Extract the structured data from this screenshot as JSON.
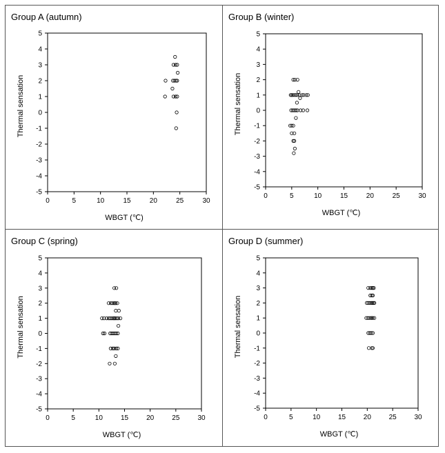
{
  "chart_data": [
    {
      "type": "scatter",
      "title": "Group A (autumn)",
      "xlabel": "WBGT (℃)",
      "ylabel": "Thermal sensation",
      "xlim": [
        0,
        30
      ],
      "ylim": [
        -5,
        5
      ],
      "xticks": [
        "0",
        "5",
        "10",
        "15",
        "20",
        "25",
        "30"
      ],
      "yticks": [
        "5",
        "4",
        "3",
        "2",
        "1",
        "0",
        "-1",
        "-2",
        "-3",
        "-4",
        "-5"
      ],
      "grid": false,
      "points": [
        [
          24.1,
          3.5
        ],
        [
          23.8,
          3.0
        ],
        [
          24.2,
          3.0
        ],
        [
          24.5,
          3.0
        ],
        [
          24.6,
          2.5
        ],
        [
          22.3,
          2.0
        ],
        [
          23.7,
          2.0
        ],
        [
          24.0,
          2.0
        ],
        [
          24.3,
          2.0
        ],
        [
          24.5,
          2.0
        ],
        [
          23.6,
          1.5
        ],
        [
          22.2,
          1.0
        ],
        [
          23.8,
          1.0
        ],
        [
          24.2,
          1.0
        ],
        [
          24.5,
          1.0
        ],
        [
          24.4,
          0.0
        ],
        [
          24.3,
          -1.0
        ]
      ]
    },
    {
      "type": "scatter",
      "title": "Group B (winter)",
      "xlabel": "WBGT (℃)",
      "ylabel": "Thermal sensation",
      "xlim": [
        0,
        30
      ],
      "ylim": [
        -5,
        5
      ],
      "xticks": [
        "0",
        "5",
        "10",
        "15",
        "20",
        "25",
        "30"
      ],
      "yticks": [
        "5",
        "4",
        "3",
        "2",
        "1",
        "0",
        "-1",
        "-2",
        "-3",
        "-4",
        "-5"
      ],
      "grid": false,
      "points": [
        [
          5.3,
          2.0
        ],
        [
          5.6,
          2.0
        ],
        [
          6.1,
          2.0
        ],
        [
          6.3,
          1.2
        ],
        [
          4.8,
          1.0
        ],
        [
          5.0,
          1.0
        ],
        [
          5.2,
          1.0
        ],
        [
          5.5,
          1.0
        ],
        [
          5.8,
          1.0
        ],
        [
          6.1,
          1.0
        ],
        [
          6.5,
          1.0
        ],
        [
          7.0,
          1.0
        ],
        [
          7.3,
          1.0
        ],
        [
          7.8,
          1.0
        ],
        [
          8.1,
          1.0
        ],
        [
          6.6,
          0.8
        ],
        [
          6.0,
          0.5
        ],
        [
          4.9,
          0.0
        ],
        [
          5.2,
          0.0
        ],
        [
          5.5,
          0.0
        ],
        [
          5.8,
          0.0
        ],
        [
          6.1,
          0.0
        ],
        [
          6.7,
          0.0
        ],
        [
          7.2,
          0.0
        ],
        [
          8.0,
          0.0
        ],
        [
          5.8,
          -0.5
        ],
        [
          4.7,
          -1.0
        ],
        [
          5.0,
          -1.0
        ],
        [
          5.3,
          -1.0
        ],
        [
          5.0,
          -1.5
        ],
        [
          5.5,
          -1.5
        ],
        [
          5.3,
          -2.0
        ],
        [
          5.5,
          -2.0
        ],
        [
          5.6,
          -2.5
        ],
        [
          5.4,
          -2.8
        ]
      ]
    },
    {
      "type": "scatter",
      "title": "Group C (spring)",
      "xlabel": "WBGT (℃)",
      "ylabel": "Thermal sensation",
      "xlim": [
        0,
        30
      ],
      "ylim": [
        -5,
        5
      ],
      "xticks": [
        "0",
        "5",
        "10",
        "15",
        "20",
        "25",
        "30"
      ],
      "yticks": [
        "5",
        "4",
        "3",
        "2",
        "1",
        "0",
        "-1",
        "-2",
        "-3",
        "-4",
        "-5"
      ],
      "grid": false,
      "points": [
        [
          13.0,
          3.0
        ],
        [
          13.4,
          3.0
        ],
        [
          11.9,
          2.0
        ],
        [
          12.3,
          2.0
        ],
        [
          12.6,
          2.0
        ],
        [
          12.9,
          2.0
        ],
        [
          13.1,
          2.0
        ],
        [
          13.3,
          2.0
        ],
        [
          13.6,
          2.0
        ],
        [
          13.3,
          1.5
        ],
        [
          13.9,
          1.5
        ],
        [
          10.6,
          1.0
        ],
        [
          11.0,
          1.0
        ],
        [
          11.5,
          1.0
        ],
        [
          11.9,
          1.0
        ],
        [
          12.2,
          1.0
        ],
        [
          12.5,
          1.0
        ],
        [
          12.8,
          1.0
        ],
        [
          13.0,
          1.0
        ],
        [
          13.2,
          1.0
        ],
        [
          13.5,
          1.0
        ],
        [
          13.8,
          1.0
        ],
        [
          14.2,
          1.0
        ],
        [
          13.8,
          0.5
        ],
        [
          10.8,
          0.0
        ],
        [
          11.1,
          0.0
        ],
        [
          12.2,
          0.0
        ],
        [
          12.5,
          0.0
        ],
        [
          12.8,
          0.0
        ],
        [
          13.1,
          0.0
        ],
        [
          13.4,
          0.0
        ],
        [
          13.7,
          0.0
        ],
        [
          12.3,
          -1.0
        ],
        [
          12.7,
          -1.0
        ],
        [
          13.0,
          -1.0
        ],
        [
          13.4,
          -1.0
        ],
        [
          13.7,
          -1.0
        ],
        [
          13.3,
          -1.5
        ],
        [
          12.1,
          -2.0
        ],
        [
          13.1,
          -2.0
        ]
      ]
    },
    {
      "type": "scatter",
      "title": "Group D (summer)",
      "xlabel": "WBGT (℃)",
      "ylabel": "Thermal sensation",
      "xlim": [
        0,
        30
      ],
      "ylim": [
        -5,
        5
      ],
      "xticks": [
        "0",
        "5",
        "10",
        "15",
        "20",
        "25",
        "30"
      ],
      "yticks": [
        "5",
        "4",
        "3",
        "2",
        "1",
        "0",
        "-1",
        "-2",
        "-3",
        "-4",
        "-5"
      ],
      "grid": false,
      "points": [
        [
          20.2,
          3.0
        ],
        [
          20.6,
          3.0
        ],
        [
          20.9,
          3.0
        ],
        [
          21.1,
          3.0
        ],
        [
          21.3,
          3.0
        ],
        [
          20.6,
          2.5
        ],
        [
          20.9,
          2.5
        ],
        [
          21.1,
          2.5
        ],
        [
          19.9,
          2.0
        ],
        [
          20.2,
          2.0
        ],
        [
          20.5,
          2.0
        ],
        [
          20.8,
          2.0
        ],
        [
          21.0,
          2.0
        ],
        [
          21.2,
          2.0
        ],
        [
          21.4,
          2.0
        ],
        [
          19.8,
          1.0
        ],
        [
          20.1,
          1.0
        ],
        [
          20.4,
          1.0
        ],
        [
          20.7,
          1.0
        ],
        [
          20.9,
          1.0
        ],
        [
          21.1,
          1.0
        ],
        [
          21.4,
          1.0
        ],
        [
          20.2,
          0.0
        ],
        [
          20.5,
          0.0
        ],
        [
          20.8,
          0.0
        ],
        [
          21.1,
          0.0
        ],
        [
          20.3,
          -1.0
        ],
        [
          20.9,
          -1.0
        ],
        [
          21.1,
          -1.0
        ]
      ]
    }
  ]
}
